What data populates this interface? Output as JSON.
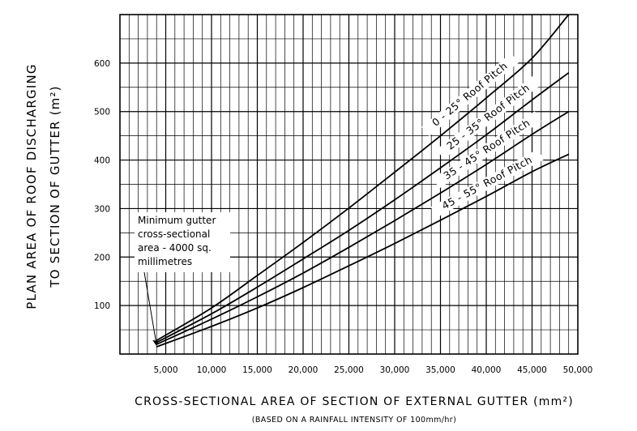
{
  "chart_data": {
    "type": "line",
    "title": "",
    "xlabel": "CROSS-SECTIONAL AREA OF SECTION OF EXTERNAL GUTTER (mm²)",
    "xlabel_note": "(BASED ON A RAINFALL INTENSITY OF 100mm/hr)",
    "ylabel_line1": "PLAN AREA OF ROOF DISCHARGING",
    "ylabel_line2": "TO SECTION OF GUTTER (m²)",
    "xlim": [
      0,
      50000
    ],
    "ylim": [
      0,
      700
    ],
    "grid": true,
    "x_ticks": [
      5000,
      10000,
      15000,
      20000,
      25000,
      30000,
      35000,
      40000,
      45000,
      50000
    ],
    "x_tick_labels": [
      "5,000",
      "10,000",
      "15,000",
      "20,000",
      "25,000",
      "30,000",
      "35,000",
      "40,000",
      "45,000",
      "50,000"
    ],
    "y_ticks": [
      100,
      200,
      300,
      400,
      500,
      600
    ],
    "y_tick_labels": [
      "100",
      "200",
      "300",
      "400",
      "500",
      "600"
    ],
    "series": [
      {
        "name": "0 - 25° Roof Pitch",
        "x": [
          4000,
          10000,
          15000,
          20000,
          25000,
          30000,
          35000,
          40000,
          45000,
          49000
        ],
        "y": [
          28,
          95,
          162,
          230,
          301,
          375,
          450,
          528,
          610,
          700
        ]
      },
      {
        "name": "25 - 35° Roof Pitch",
        "x": [
          4000,
          10000,
          15000,
          20000,
          25000,
          30000,
          35000,
          40000,
          45000,
          49000
        ],
        "y": [
          24,
          83,
          138,
          196,
          255,
          318,
          384,
          452,
          524,
          580
        ]
      },
      {
        "name": "35 - 45° Roof Pitch",
        "x": [
          4000,
          10000,
          15000,
          20000,
          25000,
          30000,
          35000,
          40000,
          45000,
          49000
        ],
        "y": [
          20,
          72,
          118,
          167,
          220,
          275,
          332,
          391,
          453,
          500
        ]
      },
      {
        "name": "45 - 55° Roof Pitch",
        "x": [
          4000,
          10000,
          15000,
          20000,
          25000,
          30000,
          35000,
          40000,
          45000,
          49000
        ],
        "y": [
          15,
          57,
          95,
          137,
          182,
          228,
          276,
          325,
          376,
          412
        ]
      }
    ],
    "annotation": {
      "lines": [
        "Minimum gutter",
        "cross-sectional",
        "area - 4000 sq.",
        "millimetres"
      ],
      "x": 4000,
      "y": 15
    }
  }
}
